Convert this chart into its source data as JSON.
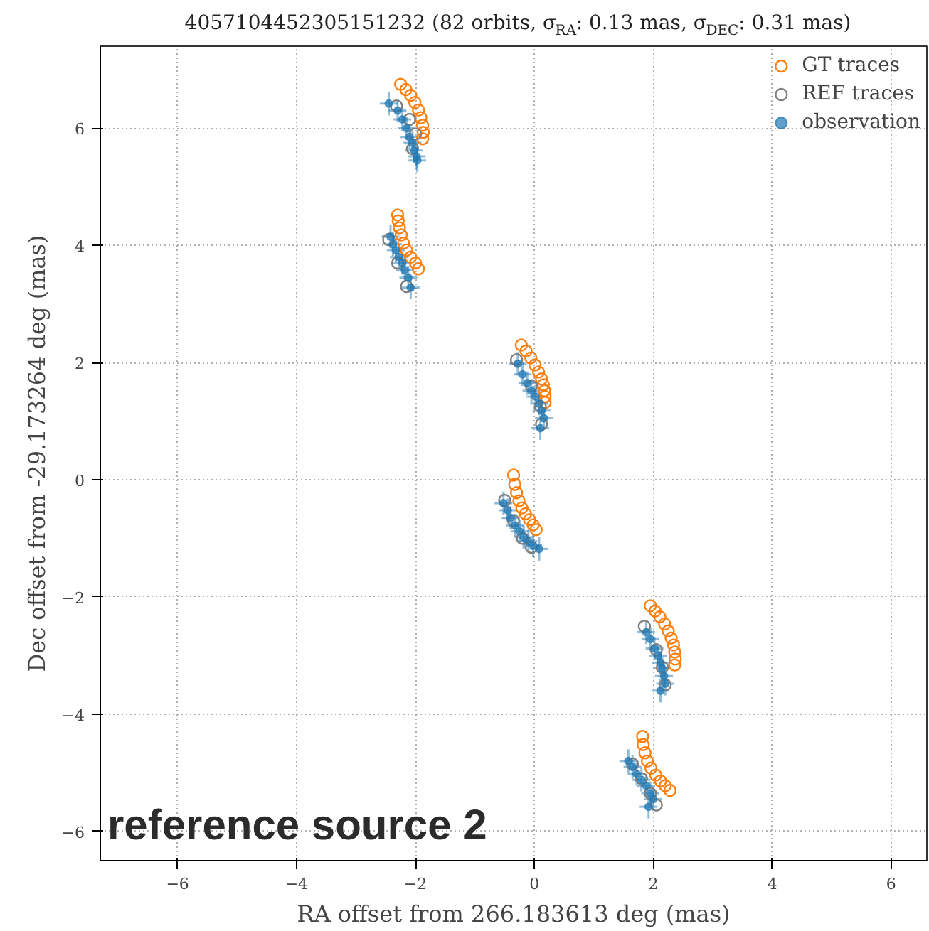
{
  "chart_data": {
    "type": "scatter",
    "title": "4057104452305151232 (82 orbits, σ$_{RA}$: 0.13 mas, σ$_{DEC}$: 0.31 mas)",
    "xlabel": "RA offset from 266.183613 deg (mas)",
    "ylabel": "Dec offset from -29.173264 deg (mas)",
    "xlim": [
      -7.3,
      6.6
    ],
    "ylim": [
      -6.5,
      7.4
    ],
    "xticks": [
      {
        "value": -6,
        "label": "−6"
      },
      {
        "value": -4,
        "label": "−4"
      },
      {
        "value": -2,
        "label": "−2"
      },
      0,
      2,
      4,
      6
    ],
    "yticks": [
      {
        "value": -6,
        "label": "−6"
      },
      {
        "value": -4,
        "label": "−4"
      },
      {
        "value": -2,
        "label": "−2"
      },
      0,
      2,
      4,
      6
    ],
    "grid": true,
    "legend": "top right",
    "marker": "circle",
    "annotations": [
      "reference source 2"
    ],
    "series": [
      {
        "name": "GT traces",
        "color": "#ff7f0e",
        "x": [
          -2.25,
          -2.16,
          -2.08,
          -2.01,
          -1.95,
          -1.91,
          -1.88,
          -1.87,
          -1.88,
          -2.3,
          -2.29,
          -2.27,
          -2.24,
          -2.2,
          -2.15,
          -2.08,
          -2.0,
          -1.95,
          -0.22,
          -0.14,
          -0.06,
          0.01,
          0.07,
          0.12,
          0.15,
          0.17,
          0.18,
          0.18,
          -0.35,
          -0.33,
          -0.3,
          -0.26,
          -0.21,
          -0.15,
          -0.08,
          -0.02,
          0.03,
          1.95,
          2.03,
          2.11,
          2.19,
          2.25,
          2.3,
          2.34,
          2.36,
          2.37,
          2.36,
          1.82,
          1.83,
          1.86,
          1.9,
          1.96,
          2.04,
          2.12,
          2.2,
          2.28
        ],
        "values": [
          6.75,
          6.66,
          6.56,
          6.44,
          6.31,
          6.18,
          6.05,
          5.93,
          5.82,
          4.52,
          4.42,
          4.3,
          4.18,
          4.04,
          3.92,
          3.8,
          3.7,
          3.6,
          2.3,
          2.2,
          2.08,
          1.96,
          1.84,
          1.72,
          1.62,
          1.52,
          1.42,
          1.32,
          0.08,
          -0.08,
          -0.22,
          -0.36,
          -0.48,
          -0.58,
          -0.68,
          -0.77,
          -0.85,
          -2.15,
          -2.24,
          -2.34,
          -2.46,
          -2.58,
          -2.7,
          -2.82,
          -2.94,
          -3.06,
          -3.16,
          -4.38,
          -4.52,
          -4.66,
          -4.8,
          -4.92,
          -5.04,
          -5.14,
          -5.22,
          -5.3
        ]
      },
      {
        "name": "REF traces",
        "color": "#7f7f7f",
        "x": [
          -2.32,
          -2.1,
          -2.0,
          -2.05,
          -2.45,
          -2.3,
          -2.15,
          -0.3,
          -0.05,
          0.1,
          0.12,
          -0.5,
          -0.35,
          -0.2,
          -0.05,
          1.85,
          2.05,
          2.15,
          2.2,
          1.65,
          1.8,
          1.95,
          2.05
        ],
        "values": [
          6.38,
          6.15,
          5.9,
          5.65,
          4.1,
          3.7,
          3.3,
          2.05,
          1.6,
          1.25,
          0.95,
          -0.35,
          -0.7,
          -1.0,
          -1.15,
          -2.5,
          -2.9,
          -3.2,
          -3.5,
          -4.85,
          -5.1,
          -5.35,
          -5.55
        ]
      },
      {
        "name": "observation",
        "color": "#1f77b4",
        "x": [
          -2.45,
          -2.3,
          -2.22,
          -2.15,
          -2.1,
          -2.05,
          -2.02,
          -1.98,
          -1.97,
          -2.42,
          -2.38,
          -2.33,
          -2.28,
          -2.22,
          -2.18,
          -2.12,
          -2.08,
          -0.28,
          -0.2,
          -0.12,
          -0.05,
          0.02,
          0.08,
          0.12,
          0.16,
          0.1,
          -0.52,
          -0.45,
          -0.4,
          -0.33,
          -0.25,
          -0.18,
          -0.1,
          -0.02,
          0.08,
          1.88,
          1.95,
          2.02,
          2.08,
          2.12,
          2.15,
          2.18,
          2.2,
          2.12,
          1.58,
          1.65,
          1.72,
          1.8,
          1.88,
          1.95,
          2.0,
          1.92
        ],
        "values": [
          6.42,
          6.3,
          6.15,
          6.0,
          5.85,
          5.75,
          5.62,
          5.52,
          5.45,
          4.15,
          4.02,
          3.92,
          3.8,
          3.7,
          3.58,
          3.45,
          3.28,
          1.98,
          1.8,
          1.65,
          1.52,
          1.42,
          1.3,
          1.18,
          1.05,
          0.88,
          -0.4,
          -0.52,
          -0.65,
          -0.78,
          -0.88,
          -0.98,
          -1.05,
          -1.12,
          -1.18,
          -2.6,
          -2.72,
          -2.88,
          -3.0,
          -3.12,
          -3.22,
          -3.35,
          -3.48,
          -3.6,
          -4.8,
          -4.9,
          -5.02,
          -5.12,
          -5.22,
          -5.35,
          -5.45,
          -5.58
        ],
        "errors": [
          0.2,
          0.2,
          0.2,
          0.2,
          0.2,
          0.2,
          0.2,
          0.2,
          0.2,
          0.2,
          0.2,
          0.2,
          0.2,
          0.2,
          0.2,
          0.2,
          0.2,
          0.2,
          0.2,
          0.2,
          0.2,
          0.2,
          0.2,
          0.2,
          0.2,
          0.2,
          0.2,
          0.2,
          0.2,
          0.2,
          0.2,
          0.2,
          0.2,
          0.2,
          0.2,
          0.2,
          0.2,
          0.2,
          0.2,
          0.2,
          0.2,
          0.2,
          0.2,
          0.2,
          0.2,
          0.2,
          0.2,
          0.2,
          0.2,
          0.2,
          0.2,
          0.2
        ],
        "xerrors": [
          0.15,
          0.15,
          0.15,
          0.15,
          0.15,
          0.15,
          0.15,
          0.15,
          0.15,
          0.15,
          0.15,
          0.15,
          0.15,
          0.15,
          0.15,
          0.15,
          0.15,
          0.15,
          0.15,
          0.15,
          0.15,
          0.15,
          0.15,
          0.15,
          0.15,
          0.15,
          0.15,
          0.15,
          0.15,
          0.15,
          0.15,
          0.15,
          0.15,
          0.15,
          0.15,
          0.15,
          0.15,
          0.15,
          0.15,
          0.15,
          0.15,
          0.15,
          0.15,
          0.15,
          0.15,
          0.15,
          0.15,
          0.15,
          0.15,
          0.15,
          0.15,
          0.15
        ]
      }
    ]
  }
}
